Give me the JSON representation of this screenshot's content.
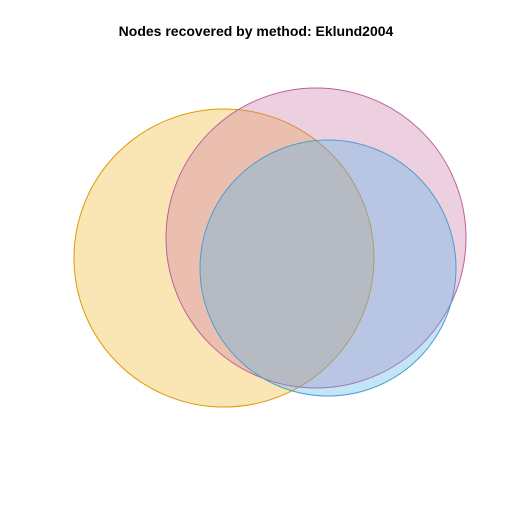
{
  "title": "Nodes recovered by method: Eklund2004",
  "sets": [
    {
      "key": "orange",
      "fill": "#f0b429",
      "stroke": "#e09a00"
    },
    {
      "key": "pink",
      "fill": "#cc79a7",
      "stroke": "#c0609a"
    },
    {
      "key": "blue",
      "fill": "#56b4e9",
      "stroke": "#4a9fd0"
    }
  ]
}
